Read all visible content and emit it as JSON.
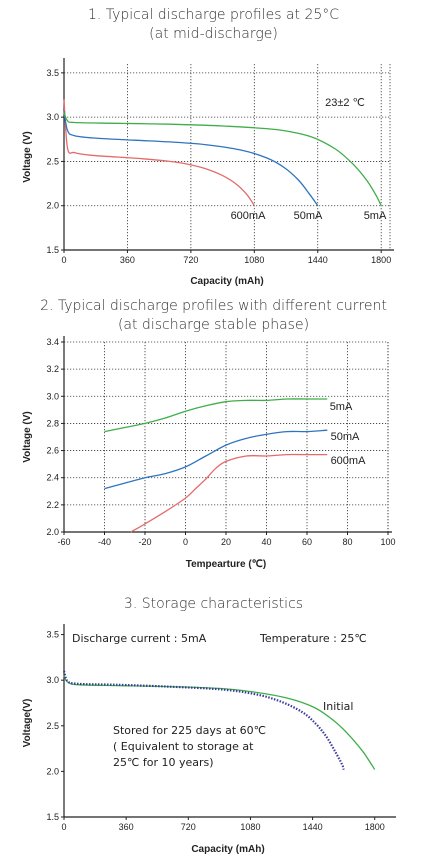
{
  "chart_data": [
    {
      "type": "line",
      "title_line1": "1. Typical discharge profiles at 25°C",
      "title_line2": "(at mid-discharge)",
      "xlabel": "Capacity  (mAh)",
      "ylabel": "Voltage (V)",
      "xlim": [
        0,
        1850
      ],
      "ylim": [
        1.5,
        3.6
      ],
      "xticks": [
        "0",
        "360",
        "720",
        "1080",
        "1440",
        "1800"
      ],
      "yticks": [
        "1.5",
        "2.0",
        "2.5",
        "3.0",
        "3.5"
      ],
      "grid": true,
      "annotation": "23±2 ℃",
      "series": [
        {
          "name": "600mA",
          "color": "#e56b6b",
          "x": [
            0,
            20,
            60,
            150,
            300,
            450,
            600,
            700,
            800,
            900,
            980,
            1040,
            1080
          ],
          "y": [
            3.2,
            2.65,
            2.6,
            2.57,
            2.55,
            2.53,
            2.5,
            2.47,
            2.42,
            2.34,
            2.24,
            2.12,
            2.0
          ]
        },
        {
          "name": "50mA",
          "color": "#2f74c0",
          "x": [
            0,
            20,
            60,
            200,
            400,
            600,
            800,
            1000,
            1150,
            1250,
            1330,
            1390,
            1440
          ],
          "y": [
            3.07,
            2.85,
            2.79,
            2.76,
            2.74,
            2.72,
            2.69,
            2.63,
            2.54,
            2.43,
            2.29,
            2.14,
            2.0
          ]
        },
        {
          "name": "5mA",
          "color": "#3fae49",
          "x": [
            0,
            20,
            60,
            300,
            600,
            900,
            1200,
            1400,
            1540,
            1640,
            1720,
            1770,
            1800
          ],
          "y": [
            3.05,
            2.96,
            2.94,
            2.93,
            2.92,
            2.9,
            2.86,
            2.78,
            2.64,
            2.47,
            2.28,
            2.12,
            2.0
          ]
        }
      ],
      "series_labels": [
        "600mA",
        "50mA",
        "5mA"
      ]
    },
    {
      "type": "line",
      "title_line1": "2. Typical discharge profiles with different current",
      "title_line2": "(at discharge stable phase)",
      "xlabel": "Tempearture  (℃)",
      "ylabel": "Voltage  (V)",
      "xlim": [
        -60,
        100
      ],
      "ylim": [
        2.0,
        3.4
      ],
      "xticks": [
        "-60",
        "-40",
        "-20",
        "0",
        "20",
        "40",
        "60",
        "80",
        "100"
      ],
      "yticks": [
        "2.0",
        "2.2",
        "2.4",
        "2.6",
        "2.8",
        "3.0",
        "3.2",
        "3.4"
      ],
      "grid": true,
      "series": [
        {
          "name": "5mA",
          "color": "#3fae49",
          "x": [
            -40,
            -30,
            -20,
            -10,
            0,
            10,
            20,
            30,
            40,
            50,
            60,
            70
          ],
          "y": [
            2.74,
            2.77,
            2.8,
            2.84,
            2.89,
            2.93,
            2.96,
            2.97,
            2.97,
            2.98,
            2.98,
            2.98
          ]
        },
        {
          "name": "50mA",
          "color": "#2f74c0",
          "x": [
            -40,
            -30,
            -20,
            -10,
            0,
            10,
            20,
            30,
            40,
            50,
            60,
            70
          ],
          "y": [
            2.32,
            2.36,
            2.4,
            2.43,
            2.48,
            2.56,
            2.64,
            2.69,
            2.72,
            2.74,
            2.74,
            2.75
          ]
        },
        {
          "name": "600mA",
          "color": "#e56b6b",
          "x": [
            -27,
            -20,
            -10,
            0,
            5,
            10,
            15,
            20,
            30,
            40,
            50,
            60,
            70
          ],
          "y": [
            2.0,
            2.06,
            2.15,
            2.25,
            2.32,
            2.39,
            2.47,
            2.52,
            2.56,
            2.56,
            2.57,
            2.57,
            2.57
          ]
        }
      ],
      "series_labels": [
        "5mA",
        "50mA",
        "600mA"
      ]
    },
    {
      "type": "line",
      "title": "3. Storage characteristics",
      "xlabel": "Capacity  (mAh)",
      "ylabel": "Voltage(V)",
      "xlim": [
        0,
        1900
      ],
      "ylim": [
        1.5,
        3.55
      ],
      "xticks": [
        "0",
        "360",
        "720",
        "1080",
        "1440",
        "1800"
      ],
      "yticks": [
        "1.5",
        "2.0",
        "2.5",
        "3.0",
        "3.5"
      ],
      "grid": false,
      "annotations": {
        "discharge": "Discharge current : 5mA",
        "temperature": "Temperature : 25℃",
        "initial": "Initial",
        "stored1": "Stored for 225 days at 60℃",
        "stored2": "( Equivalent to storage at",
        "stored3": "25℃ for 10 years)"
      },
      "series": [
        {
          "name": "Initial",
          "color": "#3fae49",
          "style": "solid",
          "x": [
            0,
            20,
            80,
            300,
            600,
            900,
            1100,
            1300,
            1450,
            1560,
            1650,
            1730,
            1790,
            1800
          ],
          "y": [
            3.05,
            2.98,
            2.95,
            2.94,
            2.93,
            2.91,
            2.87,
            2.8,
            2.7,
            2.56,
            2.4,
            2.22,
            2.05,
            2.02
          ]
        },
        {
          "name": "Stored for 225 days at 60℃",
          "color": "#3b3a9b",
          "style": "dotted",
          "x": [
            0,
            20,
            80,
            300,
            600,
            900,
            1100,
            1250,
            1380,
            1460,
            1520,
            1570,
            1610,
            1620
          ],
          "y": [
            3.1,
            2.99,
            2.96,
            2.95,
            2.93,
            2.9,
            2.85,
            2.77,
            2.65,
            2.52,
            2.38,
            2.22,
            2.08,
            2.02
          ]
        }
      ]
    }
  ]
}
